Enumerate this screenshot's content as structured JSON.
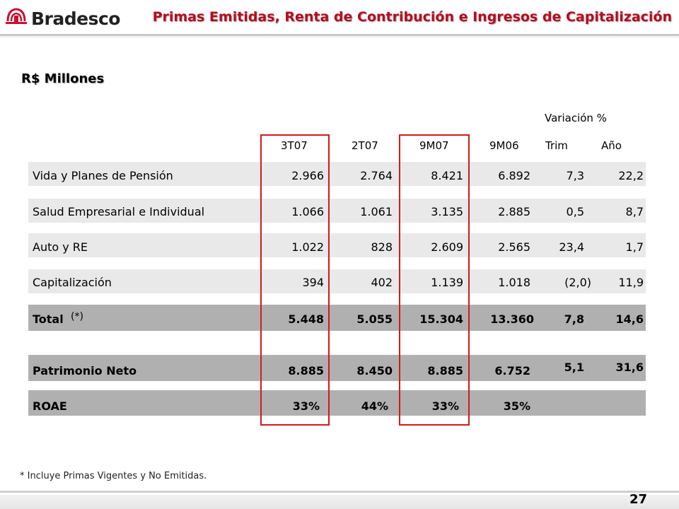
{
  "header": {
    "brand": "Bradesco",
    "title": "Primas Emitidas, Renta de Contribución e Ingresos de Capitalización",
    "brand_color": "#b50d1e"
  },
  "subtitle": "R$ Millones",
  "table": {
    "variation_header": "Variación %",
    "columns": [
      "3T07",
      "2T07",
      "9M07",
      "9M06",
      "Trim",
      "Año"
    ],
    "rows": [
      {
        "label": "Vida y Planes de Pensión",
        "values": [
          "2.966",
          "2.764",
          "8.421",
          "6.892",
          "7,3",
          "22,2"
        ]
      },
      {
        "label": "Salud Empresarial e Individual",
        "values": [
          "1.066",
          "1.061",
          "3.135",
          "2.885",
          "0,5",
          "8,7"
        ]
      },
      {
        "label": "Auto y RE",
        "values": [
          "1.022",
          "828",
          "2.609",
          "2.565",
          "23,4",
          "1,7"
        ]
      },
      {
        "label": "Capitalización",
        "values": [
          "394",
          "402",
          "1.139",
          "1.018",
          "(2,0)",
          "11,9"
        ]
      },
      {
        "label": "Total",
        "note": "(*)",
        "values": [
          "5.448",
          "5.055",
          "15.304",
          "13.360",
          "7,8",
          "14,6"
        ]
      },
      {
        "label": "Patrimonio Neto",
        "values": [
          "8.885",
          "8.450",
          "8.885",
          "6.752",
          "5,1",
          "31,6"
        ]
      },
      {
        "label": "ROAE",
        "values": [
          "33%",
          "44%",
          "33%",
          "35%",
          "",
          ""
        ]
      }
    ],
    "highlight_color": "#d21a1a"
  },
  "footnote": "* Incluye Primas Vigentes y No Emitidas.",
  "page_number": "27"
}
